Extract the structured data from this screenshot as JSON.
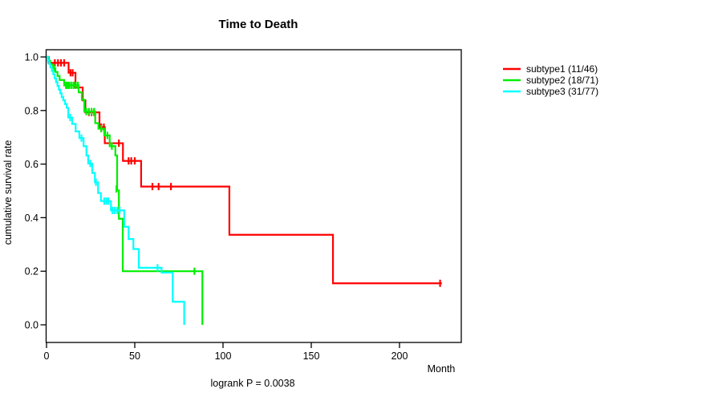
{
  "title": "Time to Death",
  "annotation": "logrank P = 0.0038",
  "chart_data": {
    "type": "line",
    "subtype": "kaplan-meier-step",
    "title": "Time to Death",
    "xlabel": "Month",
    "ylabel": "cumulative survival rate",
    "xlim": [
      0,
      235
    ],
    "ylim": [
      0.0,
      1.0
    ],
    "grid": false,
    "legend_position": "right-outside",
    "annotation": "logrank P = 0.0038",
    "x_ticks": [
      {
        "v": 0,
        "label": "0"
      },
      {
        "v": 50,
        "label": "50"
      },
      {
        "v": 100,
        "label": "100"
      },
      {
        "v": 150,
        "label": "150"
      },
      {
        "v": 200,
        "label": "200"
      }
    ],
    "y_ticks": [
      {
        "v": 0.0,
        "label": "0.0"
      },
      {
        "v": 0.2,
        "label": "0.2"
      },
      {
        "v": 0.4,
        "label": "0.4"
      },
      {
        "v": 0.6,
        "label": "0.6"
      },
      {
        "v": 0.8,
        "label": "0.8"
      },
      {
        "v": 1.0,
        "label": "1.0"
      }
    ],
    "series": [
      {
        "name": "subtype1",
        "label": "subtype1 (11/46)",
        "color": "#ff0000",
        "events": 11,
        "n": 46,
        "end_month": 224,
        "steps": [
          [
            0,
            1.0
          ],
          [
            1.2,
            0.978
          ],
          [
            12.5,
            0.941
          ],
          [
            16.4,
            0.886
          ],
          [
            20.5,
            0.838
          ],
          [
            22,
            0.793
          ],
          [
            30,
            0.738
          ],
          [
            33,
            0.678
          ],
          [
            43.3,
            0.612
          ],
          [
            53.6,
            0.516
          ],
          [
            103.6,
            0.336
          ],
          [
            162.3,
            0.155
          ]
        ],
        "censors": [
          [
            4.7,
            0.978
          ],
          [
            6.5,
            0.978
          ],
          [
            8.2,
            0.978
          ],
          [
            10,
            0.978
          ],
          [
            13.6,
            0.941
          ],
          [
            14.8,
            0.941
          ],
          [
            24,
            0.793
          ],
          [
            25.5,
            0.793
          ],
          [
            27,
            0.793
          ],
          [
            31,
            0.738
          ],
          [
            32.5,
            0.738
          ],
          [
            41,
            0.678
          ],
          [
            46.5,
            0.612
          ],
          [
            48,
            0.612
          ],
          [
            50,
            0.612
          ],
          [
            60,
            0.516
          ],
          [
            63.5,
            0.516
          ],
          [
            70.5,
            0.516
          ],
          [
            223,
            0.155
          ]
        ]
      },
      {
        "name": "subtype2",
        "label": "subtype2 (18/71)",
        "color": "#00ee00",
        "events": 18,
        "n": 71,
        "end_month": 88.3,
        "steps": [
          [
            0,
            1.0
          ],
          [
            0.9,
            0.986
          ],
          [
            2.1,
            0.972
          ],
          [
            3.6,
            0.958
          ],
          [
            5,
            0.944
          ],
          [
            6.2,
            0.929
          ],
          [
            7.4,
            0.914
          ],
          [
            10,
            0.894
          ],
          [
            18.2,
            0.868
          ],
          [
            20,
            0.84
          ],
          [
            21.4,
            0.796
          ],
          [
            27.6,
            0.753
          ],
          [
            29.4,
            0.732
          ],
          [
            32.7,
            0.707
          ],
          [
            35.8,
            0.667
          ],
          [
            39,
            0.632
          ],
          [
            40,
            0.502
          ],
          [
            41,
            0.396
          ],
          [
            43.2,
            0.2
          ],
          [
            88.3,
            0.0
          ]
        ],
        "censors": [
          [
            4.3,
            0.958
          ],
          [
            11,
            0.894
          ],
          [
            12,
            0.894
          ],
          [
            13,
            0.894
          ],
          [
            14.2,
            0.894
          ],
          [
            15.4,
            0.894
          ],
          [
            16.6,
            0.894
          ],
          [
            17.8,
            0.894
          ],
          [
            22.5,
            0.796
          ],
          [
            24,
            0.796
          ],
          [
            25.5,
            0.796
          ],
          [
            27,
            0.796
          ],
          [
            31,
            0.732
          ],
          [
            34.5,
            0.707
          ],
          [
            37,
            0.667
          ],
          [
            39.6,
            0.507
          ],
          [
            83.8,
            0.2
          ]
        ]
      },
      {
        "name": "subtype3",
        "label": "subtype3 (31/77)",
        "color": "#00ffff",
        "events": 31,
        "n": 77,
        "end_month": 78,
        "steps": [
          [
            0,
            1.0
          ],
          [
            0.8,
            0.987
          ],
          [
            1.5,
            0.974
          ],
          [
            2.2,
            0.961
          ],
          [
            3,
            0.948
          ],
          [
            3.8,
            0.935
          ],
          [
            4.6,
            0.92
          ],
          [
            5.4,
            0.906
          ],
          [
            6.2,
            0.892
          ],
          [
            7,
            0.878
          ],
          [
            7.8,
            0.864
          ],
          [
            8.6,
            0.85
          ],
          [
            9.5,
            0.838
          ],
          [
            10.5,
            0.824
          ],
          [
            11.4,
            0.81
          ],
          [
            12.3,
            0.774
          ],
          [
            14.5,
            0.75
          ],
          [
            16.5,
            0.722
          ],
          [
            18.6,
            0.697
          ],
          [
            21,
            0.667
          ],
          [
            22.6,
            0.632
          ],
          [
            23.6,
            0.602
          ],
          [
            25.9,
            0.567
          ],
          [
            27.4,
            0.532
          ],
          [
            29.2,
            0.492
          ],
          [
            30.8,
            0.462
          ],
          [
            36.5,
            0.427
          ],
          [
            44,
            0.366
          ],
          [
            46.5,
            0.32
          ],
          [
            49.2,
            0.283
          ],
          [
            52.3,
            0.213
          ],
          [
            65.2,
            0.195
          ],
          [
            71.5,
            0.086
          ],
          [
            78,
            0.0
          ]
        ],
        "censors": [
          [
            13.4,
            0.774
          ],
          [
            19.8,
            0.697
          ],
          [
            24.8,
            0.602
          ],
          [
            28,
            0.532
          ],
          [
            32.7,
            0.462
          ],
          [
            33.9,
            0.462
          ],
          [
            35,
            0.462
          ],
          [
            37.3,
            0.427
          ],
          [
            38.6,
            0.427
          ],
          [
            40,
            0.427
          ],
          [
            41.4,
            0.427
          ],
          [
            62.9,
            0.213
          ]
        ]
      }
    ]
  }
}
